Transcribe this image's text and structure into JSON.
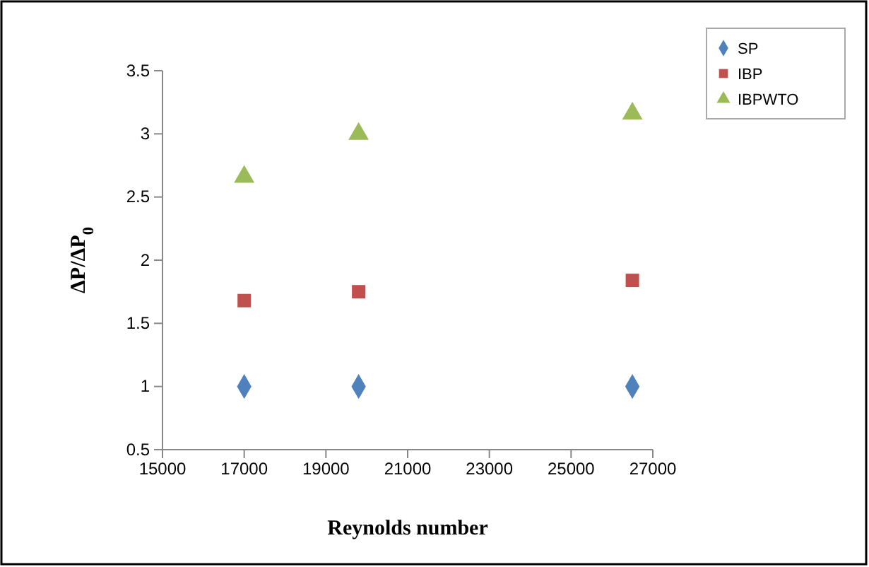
{
  "chart_data": {
    "type": "scatter",
    "xlabel": "Reynolds number",
    "ylabel": "ΔP/ΔP$_{0}$",
    "xlim": [
      15000,
      27000
    ],
    "xticks": [
      15000,
      17000,
      19000,
      21000,
      23000,
      25000,
      27000
    ],
    "ylim": [
      0.5,
      3.5
    ],
    "yticks": [
      0.5,
      1,
      1.5,
      2,
      2.5,
      3,
      3.5
    ],
    "grid": false,
    "legend": "top right",
    "series": [
      {
        "name": "SP",
        "color": "#4f81bd",
        "marker": "diamond",
        "x": [
          17000,
          19800,
          26500
        ],
        "values": [
          1,
          1,
          1
        ]
      },
      {
        "name": "IBP",
        "color": "#c0504d",
        "marker": "square",
        "x": [
          17000,
          19800,
          26500
        ],
        "values": [
          1.68,
          1.75,
          1.84
        ]
      },
      {
        "name": "IBPWTO",
        "color": "#9bbb59",
        "marker": "triangle",
        "x": [
          17000,
          19800,
          26500
        ],
        "values": [
          2.66,
          3.0,
          3.16
        ]
      }
    ]
  }
}
